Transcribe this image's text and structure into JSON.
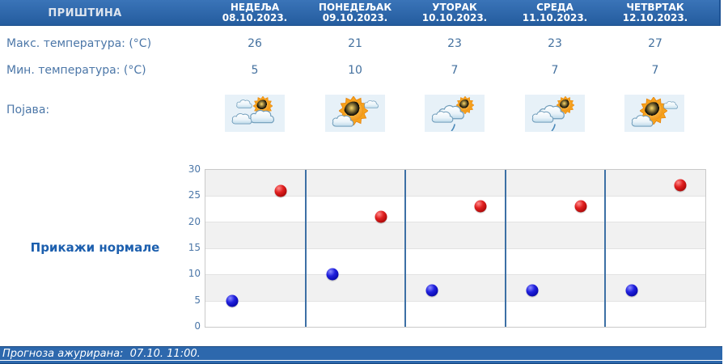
{
  "location": "ПРИШТИНА",
  "rows": {
    "max_label": "Макс. температура: (°C)",
    "min_label": "Мин. температура: (°C)",
    "phenomenon_label": "Појава:"
  },
  "days": [
    {
      "name": "НЕДЕЉА",
      "date": "08.10.2023.",
      "max": "26",
      "min": "5",
      "icon": "sun-behind-clouds-icon"
    },
    {
      "name": "ПОНЕДЕЉАК",
      "date": "09.10.2023.",
      "max": "21",
      "min": "10",
      "icon": "sun-with-clouds-icon"
    },
    {
      "name": "УТОРАК",
      "date": "10.10.2023.",
      "max": "23",
      "min": "7",
      "icon": "clouds-sun-light-rain-icon"
    },
    {
      "name": "СРЕДА",
      "date": "11.10.2023.",
      "max": "23",
      "min": "7",
      "icon": "clouds-sun-light-rain-icon"
    },
    {
      "name": "ЧЕТВРТАК",
      "date": "12.10.2023.",
      "max": "27",
      "min": "7",
      "icon": "sun-with-clouds-icon"
    }
  ],
  "normals_button": "Прикажи нормале",
  "footer": {
    "updated_text": "Прогноза ажурирана:  07.10. 11:00."
  },
  "chart_data": {
    "type": "scatter",
    "categories": [
      "НЕДЕЉА 08.10.2023.",
      "ПОНЕДЕЉАК 09.10.2023.",
      "УТОРАК 10.10.2023.",
      "СРЕДА 11.10.2023.",
      "ЧЕТВРТАК 12.10.2023."
    ],
    "series": [
      {
        "name": "Макс. температура (°C)",
        "color": "#cc1111",
        "values": [
          26,
          21,
          23,
          23,
          27
        ]
      },
      {
        "name": "Мин. температура (°C)",
        "color": "#1111cc",
        "values": [
          5,
          10,
          7,
          7,
          7
        ]
      }
    ],
    "ylim": [
      0,
      30
    ],
    "yticks": [
      0,
      5,
      10,
      15,
      20,
      25,
      30
    ],
    "xlabel": "",
    "ylabel": "",
    "legend": "none",
    "grid": "alternating-horizontal-bands-with-day-separators"
  },
  "colors": {
    "header_bar": "#2d68ad",
    "band_gray": "#f1f1f1",
    "separator_blue": "#3d70a5",
    "max_dot": "#cc1111",
    "min_dot": "#1111cc",
    "icon_cell_bg": "#e7f1f8",
    "text_blue": "#4c77a8",
    "link_blue": "#1c5fae"
  }
}
